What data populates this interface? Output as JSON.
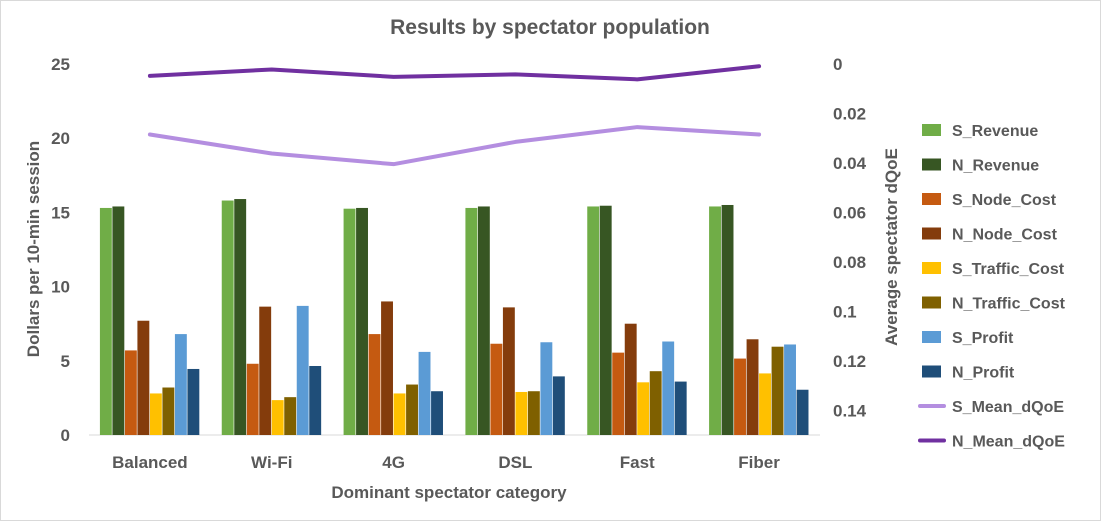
{
  "chart_data": {
    "type": "bar",
    "title": "Results by spectator population",
    "xlabel": "Dominant spectator category",
    "ylabel": "Dollars per 10-min session",
    "y2label": "Average spectator dQoE",
    "categories": [
      "Balanced",
      "Wi-Fi",
      "4G",
      "DSL",
      "Fast",
      "Fiber"
    ],
    "ylim": [
      0,
      25
    ],
    "yticks": [
      "0",
      "5",
      "10",
      "15",
      "20",
      "25"
    ],
    "y2lim": [
      0,
      0.15
    ],
    "y2_inverted": true,
    "y2ticks": [
      "0",
      "0.02",
      "0.04",
      "0.06",
      "0.08",
      "0.1",
      "0.12",
      "0.14"
    ],
    "grid": false,
    "legend_position": "right",
    "series": [
      {
        "name": "S_Revenue",
        "kind": "bar",
        "axis": "left",
        "color": "#70ad47",
        "values": [
          15.3,
          15.8,
          15.25,
          15.3,
          15.4,
          15.4
        ]
      },
      {
        "name": "N_Revenue",
        "kind": "bar",
        "axis": "left",
        "color": "#375623",
        "values": [
          15.4,
          15.9,
          15.3,
          15.4,
          15.45,
          15.5
        ]
      },
      {
        "name": "S_Node_Cost",
        "kind": "bar",
        "axis": "left",
        "color": "#c55a11",
        "values": [
          5.7,
          4.8,
          6.8,
          6.15,
          5.55,
          5.15
        ]
      },
      {
        "name": "N_Node_Cost",
        "kind": "bar",
        "axis": "left",
        "color": "#843c0c",
        "values": [
          7.7,
          8.65,
          9.0,
          8.6,
          7.5,
          6.45
        ]
      },
      {
        "name": "S_Traffic_Cost",
        "kind": "bar",
        "axis": "left",
        "color": "#ffc000",
        "values": [
          2.8,
          2.35,
          2.8,
          2.9,
          3.55,
          4.15
        ]
      },
      {
        "name": "N_Traffic_Cost",
        "kind": "bar",
        "axis": "left",
        "color": "#7f6000",
        "values": [
          3.2,
          2.55,
          3.4,
          2.95,
          4.3,
          5.95
        ]
      },
      {
        "name": "S_Profit",
        "kind": "bar",
        "axis": "left",
        "color": "#5b9bd5",
        "values": [
          6.8,
          8.7,
          5.6,
          6.25,
          6.3,
          6.1
        ]
      },
      {
        "name": "N_Profit",
        "kind": "bar",
        "axis": "left",
        "color": "#1f4e79",
        "values": [
          4.45,
          4.65,
          2.95,
          3.95,
          3.6,
          3.05
        ]
      },
      {
        "name": "S_Mean_dQoE",
        "kind": "line",
        "axis": "right",
        "color": "#b48ee0",
        "values": [
          0.0285,
          0.0362,
          0.0405,
          0.0315,
          0.0255,
          0.0285
        ]
      },
      {
        "name": "N_Mean_dQoE",
        "kind": "line",
        "axis": "right",
        "color": "#7030a0",
        "values": [
          0.0048,
          0.0022,
          0.0052,
          0.0042,
          0.0062,
          0.0009
        ]
      }
    ]
  }
}
